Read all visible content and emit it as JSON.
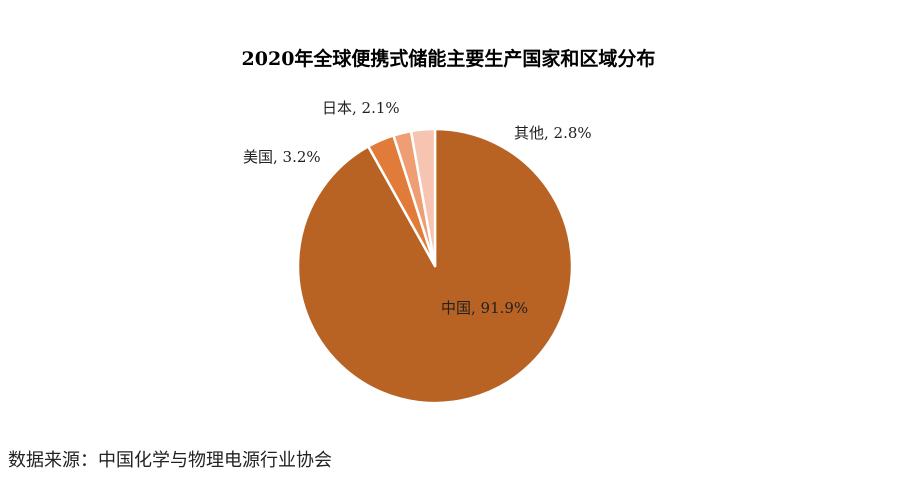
{
  "chart_data": {
    "type": "pie",
    "title": "2020年全球便携式储能主要生产国家和区域分布",
    "slices": [
      {
        "name": "中国",
        "value": 91.9,
        "label": "中国, 91.9%",
        "color": "#b86224"
      },
      {
        "name": "美国",
        "value": 3.2,
        "label": "美国, 3.2%",
        "color": "#e07b39"
      },
      {
        "name": "日本",
        "value": 2.1,
        "label": "日本, 2.1%",
        "color": "#ee9e72"
      },
      {
        "name": "其他",
        "value": 2.8,
        "label": "其他, 2.8%",
        "color": "#f6c4b1"
      }
    ],
    "start_angle_deg": 0,
    "direction": "clockwise"
  },
  "source": "数据来源：中国化学与物理电源行业协会"
}
